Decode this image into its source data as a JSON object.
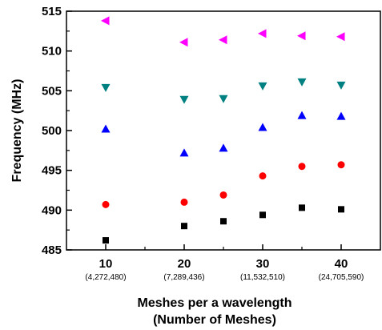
{
  "chart_data": {
    "type": "scatter",
    "title": "",
    "xlabel": "Meshes per a wavelength",
    "xlabel2": "(Number of Meshes)",
    "ylabel": "Frequency (MHz)",
    "xlim": [
      5,
      45
    ],
    "ylim": [
      485,
      515
    ],
    "x_ticks": [
      10,
      20,
      30,
      40
    ],
    "x_minor_ticks": [
      15,
      25,
      35
    ],
    "x_tick_sublabels": [
      "(4,272,480)",
      "(7,289,436)",
      "(11,532,510)",
      "(24,705,590)"
    ],
    "y_ticks": [
      485,
      490,
      495,
      500,
      505,
      510,
      515
    ],
    "grid": false,
    "legend": "none",
    "x": [
      10,
      20,
      25,
      30,
      35,
      40
    ],
    "series": [
      {
        "marker": "square",
        "color": "#000000",
        "values": [
          486.2,
          488.0,
          488.6,
          489.4,
          490.3,
          490.1
        ]
      },
      {
        "marker": "circle",
        "color": "#ff0000",
        "values": [
          490.7,
          491.0,
          491.9,
          494.3,
          495.5,
          495.7
        ]
      },
      {
        "marker": "triangle-up",
        "color": "#0000ff",
        "values": [
          500.2,
          497.2,
          497.8,
          500.4,
          501.9,
          501.8
        ]
      },
      {
        "marker": "triangle-down",
        "color": "#008080",
        "values": [
          505.4,
          503.9,
          504.0,
          505.6,
          506.1,
          505.7
        ]
      },
      {
        "marker": "triangle-left",
        "color": "#ff00ff",
        "values": [
          513.8,
          511.1,
          511.4,
          512.2,
          511.9,
          511.8
        ]
      }
    ]
  }
}
